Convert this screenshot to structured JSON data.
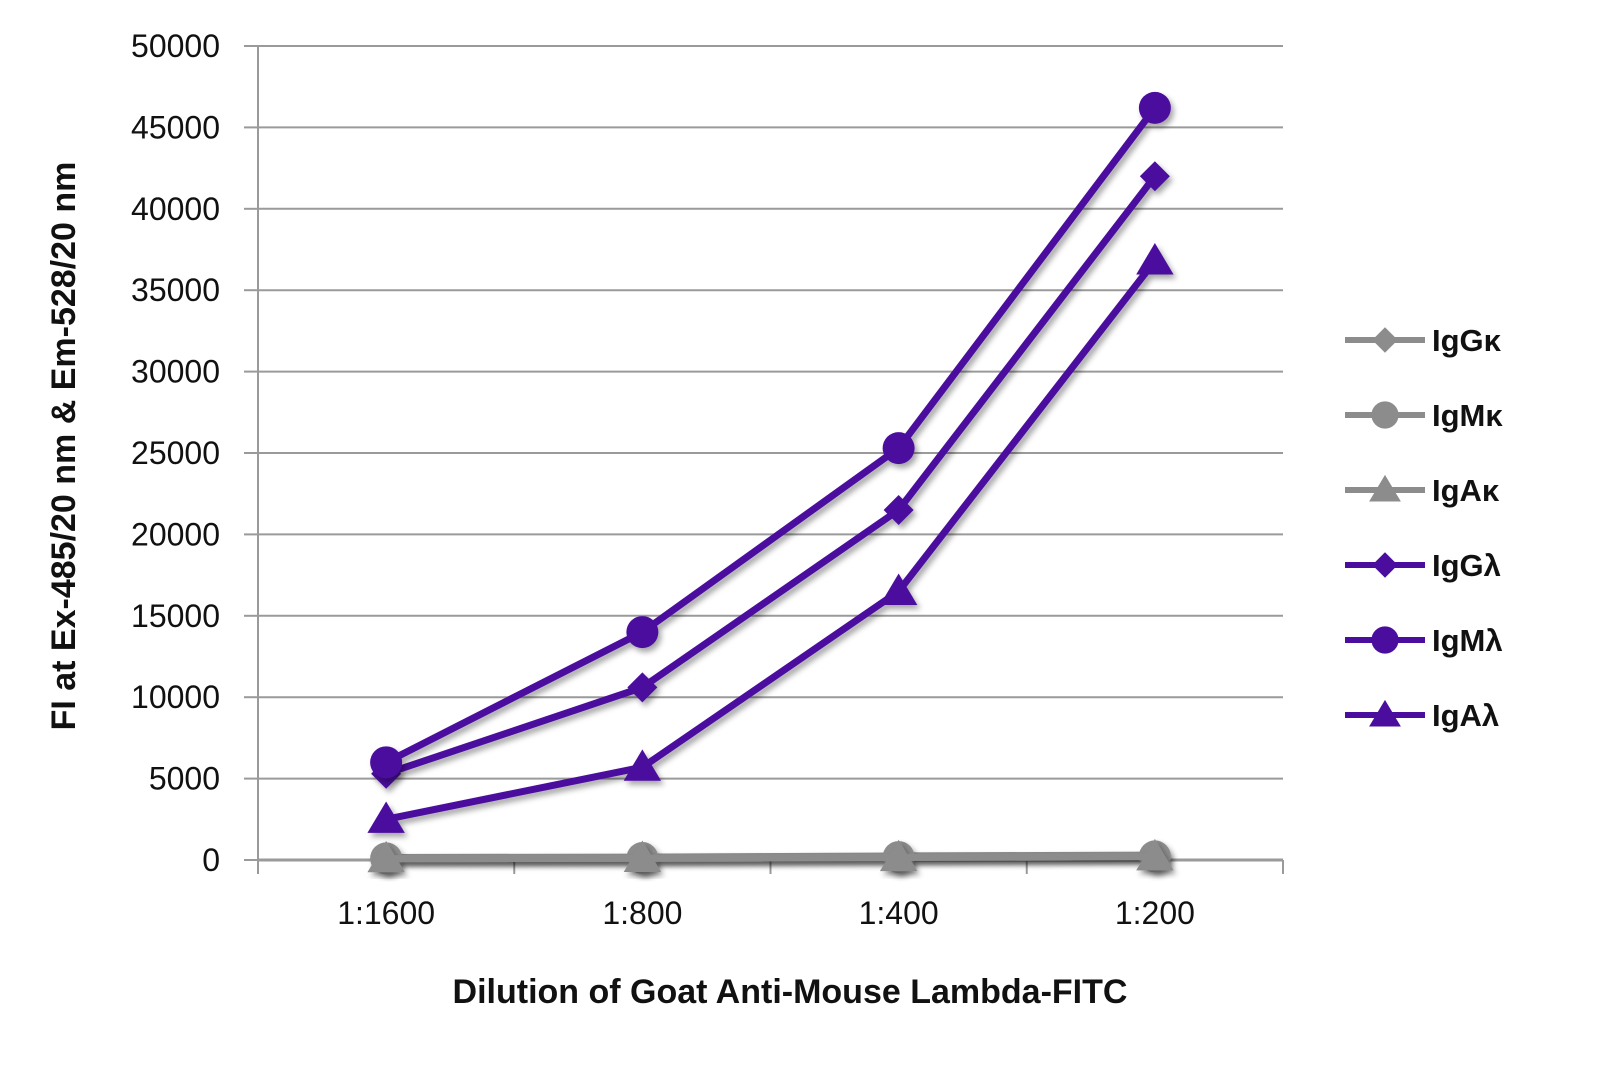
{
  "chart_data": {
    "type": "line",
    "title": "",
    "xlabel": "Dilution of Goat Anti-Mouse Lambda-FITC",
    "ylabel": "FI at Ex-485/20 nm & Em-528/20 nm",
    "categories": [
      "1:1600",
      "1:800",
      "1:400",
      "1:200"
    ],
    "ylim": [
      0,
      50000
    ],
    "yticks": [
      0,
      5000,
      10000,
      15000,
      20000,
      25000,
      30000,
      35000,
      40000,
      45000,
      50000
    ],
    "grid": true,
    "legend_position": "right",
    "series": [
      {
        "name": "IgGκ",
        "marker": "diamond",
        "color": "#8c8c8c",
        "values": [
          150,
          180,
          250,
          300
        ]
      },
      {
        "name": "IgMκ",
        "marker": "circle",
        "color": "#8c8c8c",
        "values": [
          100,
          120,
          180,
          220
        ]
      },
      {
        "name": "IgAκ",
        "marker": "triangle",
        "color": "#8c8c8c",
        "values": [
          80,
          100,
          150,
          200
        ]
      },
      {
        "name": "IgGλ",
        "marker": "diamond",
        "color": "#4b0d9e",
        "values": [
          5300,
          10600,
          21500,
          42000
        ]
      },
      {
        "name": "IgMλ",
        "marker": "circle",
        "color": "#4b0d9e",
        "values": [
          6000,
          14000,
          25300,
          46200
        ]
      },
      {
        "name": "IgAλ",
        "marker": "triangle",
        "color": "#4b0d9e",
        "values": [
          2500,
          5700,
          16500,
          36800
        ]
      }
    ]
  }
}
